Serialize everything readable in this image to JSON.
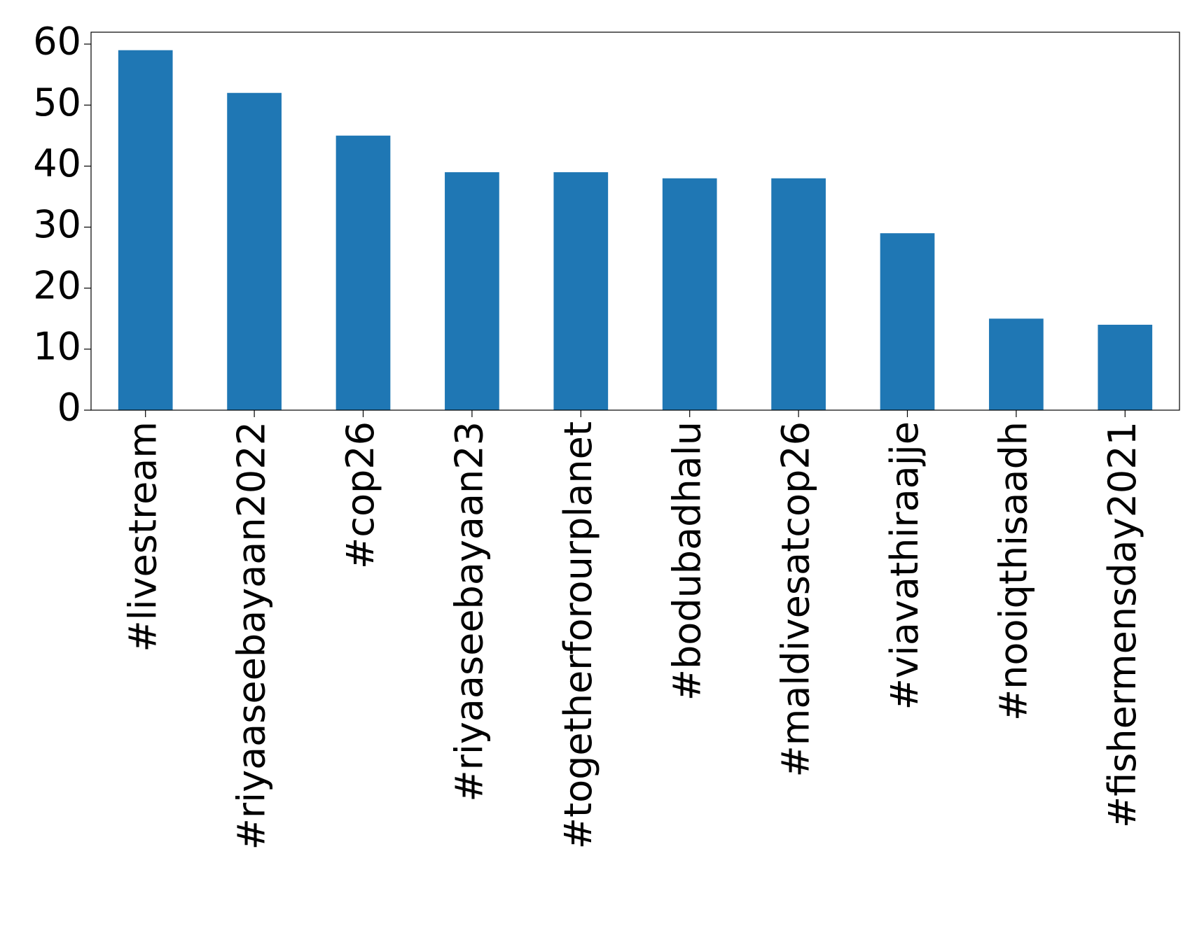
{
  "chart_data": {
    "type": "bar",
    "categories": [
      "#livestream",
      "#riyaaseebayaan2022",
      "#cop26",
      "#riyaaseebayaan23",
      "#togetherforourplanet",
      "#bodubadhalu",
      "#maldivesatcop26",
      "#viavathiraajje",
      "#nooiqthisaadh",
      "#fishermensday2021"
    ],
    "values": [
      59,
      52,
      45,
      39,
      39,
      38,
      38,
      29,
      15,
      14
    ],
    "color": "#1f77b4",
    "ylim": [
      0,
      61.95
    ],
    "yticks": [
      0,
      10,
      20,
      30,
      40,
      50,
      60
    ],
    "grid": false
  }
}
